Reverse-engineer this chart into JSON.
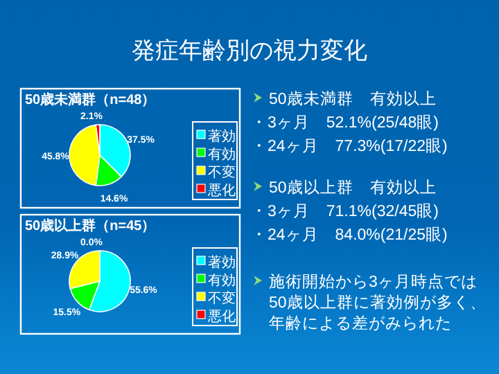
{
  "chart_data": [
    {
      "type": "pie",
      "title": "50歳未満群（n=48）",
      "categories": [
        "著効",
        "有効",
        "不変",
        "悪化"
      ],
      "values": [
        37.5,
        14.6,
        45.8,
        2.1
      ],
      "value_labels": [
        "37.5%",
        "14.6%",
        "45.8%",
        "2.1%"
      ],
      "colors": [
        "#00ffff",
        "#00ff00",
        "#ffff00",
        "#ff0000"
      ],
      "legend": "right"
    },
    {
      "type": "pie",
      "title": "50歳以上群（n=45）",
      "categories": [
        "著効",
        "有効",
        "不変",
        "悪化"
      ],
      "values": [
        55.6,
        15.5,
        28.9,
        0.0
      ],
      "value_labels": [
        "55.6%",
        "15.5%",
        "28.9%",
        "0.0%"
      ],
      "colors": [
        "#00ffff",
        "#00ff00",
        "#ffff00",
        "#ff0000"
      ],
      "legend": "right"
    },
    {
      "type": "other",
      "title": "発症年齢別の視力変化",
      "annotations": [
        "50歳未満群　有効以上",
        "・3ヶ月　52.1%(25/48眼)",
        "・24ヶ月　77.3%(17/22眼)",
        "50歳以上群　有効以上",
        "・3ヶ月　71.1%(32/45眼)",
        "・24ヶ月　84.0%(21/25眼)",
        "施術開始から3ヶ月時点では",
        "50歳以上群に著効例が多く、",
        "年齢による差がみられた"
      ]
    }
  ]
}
